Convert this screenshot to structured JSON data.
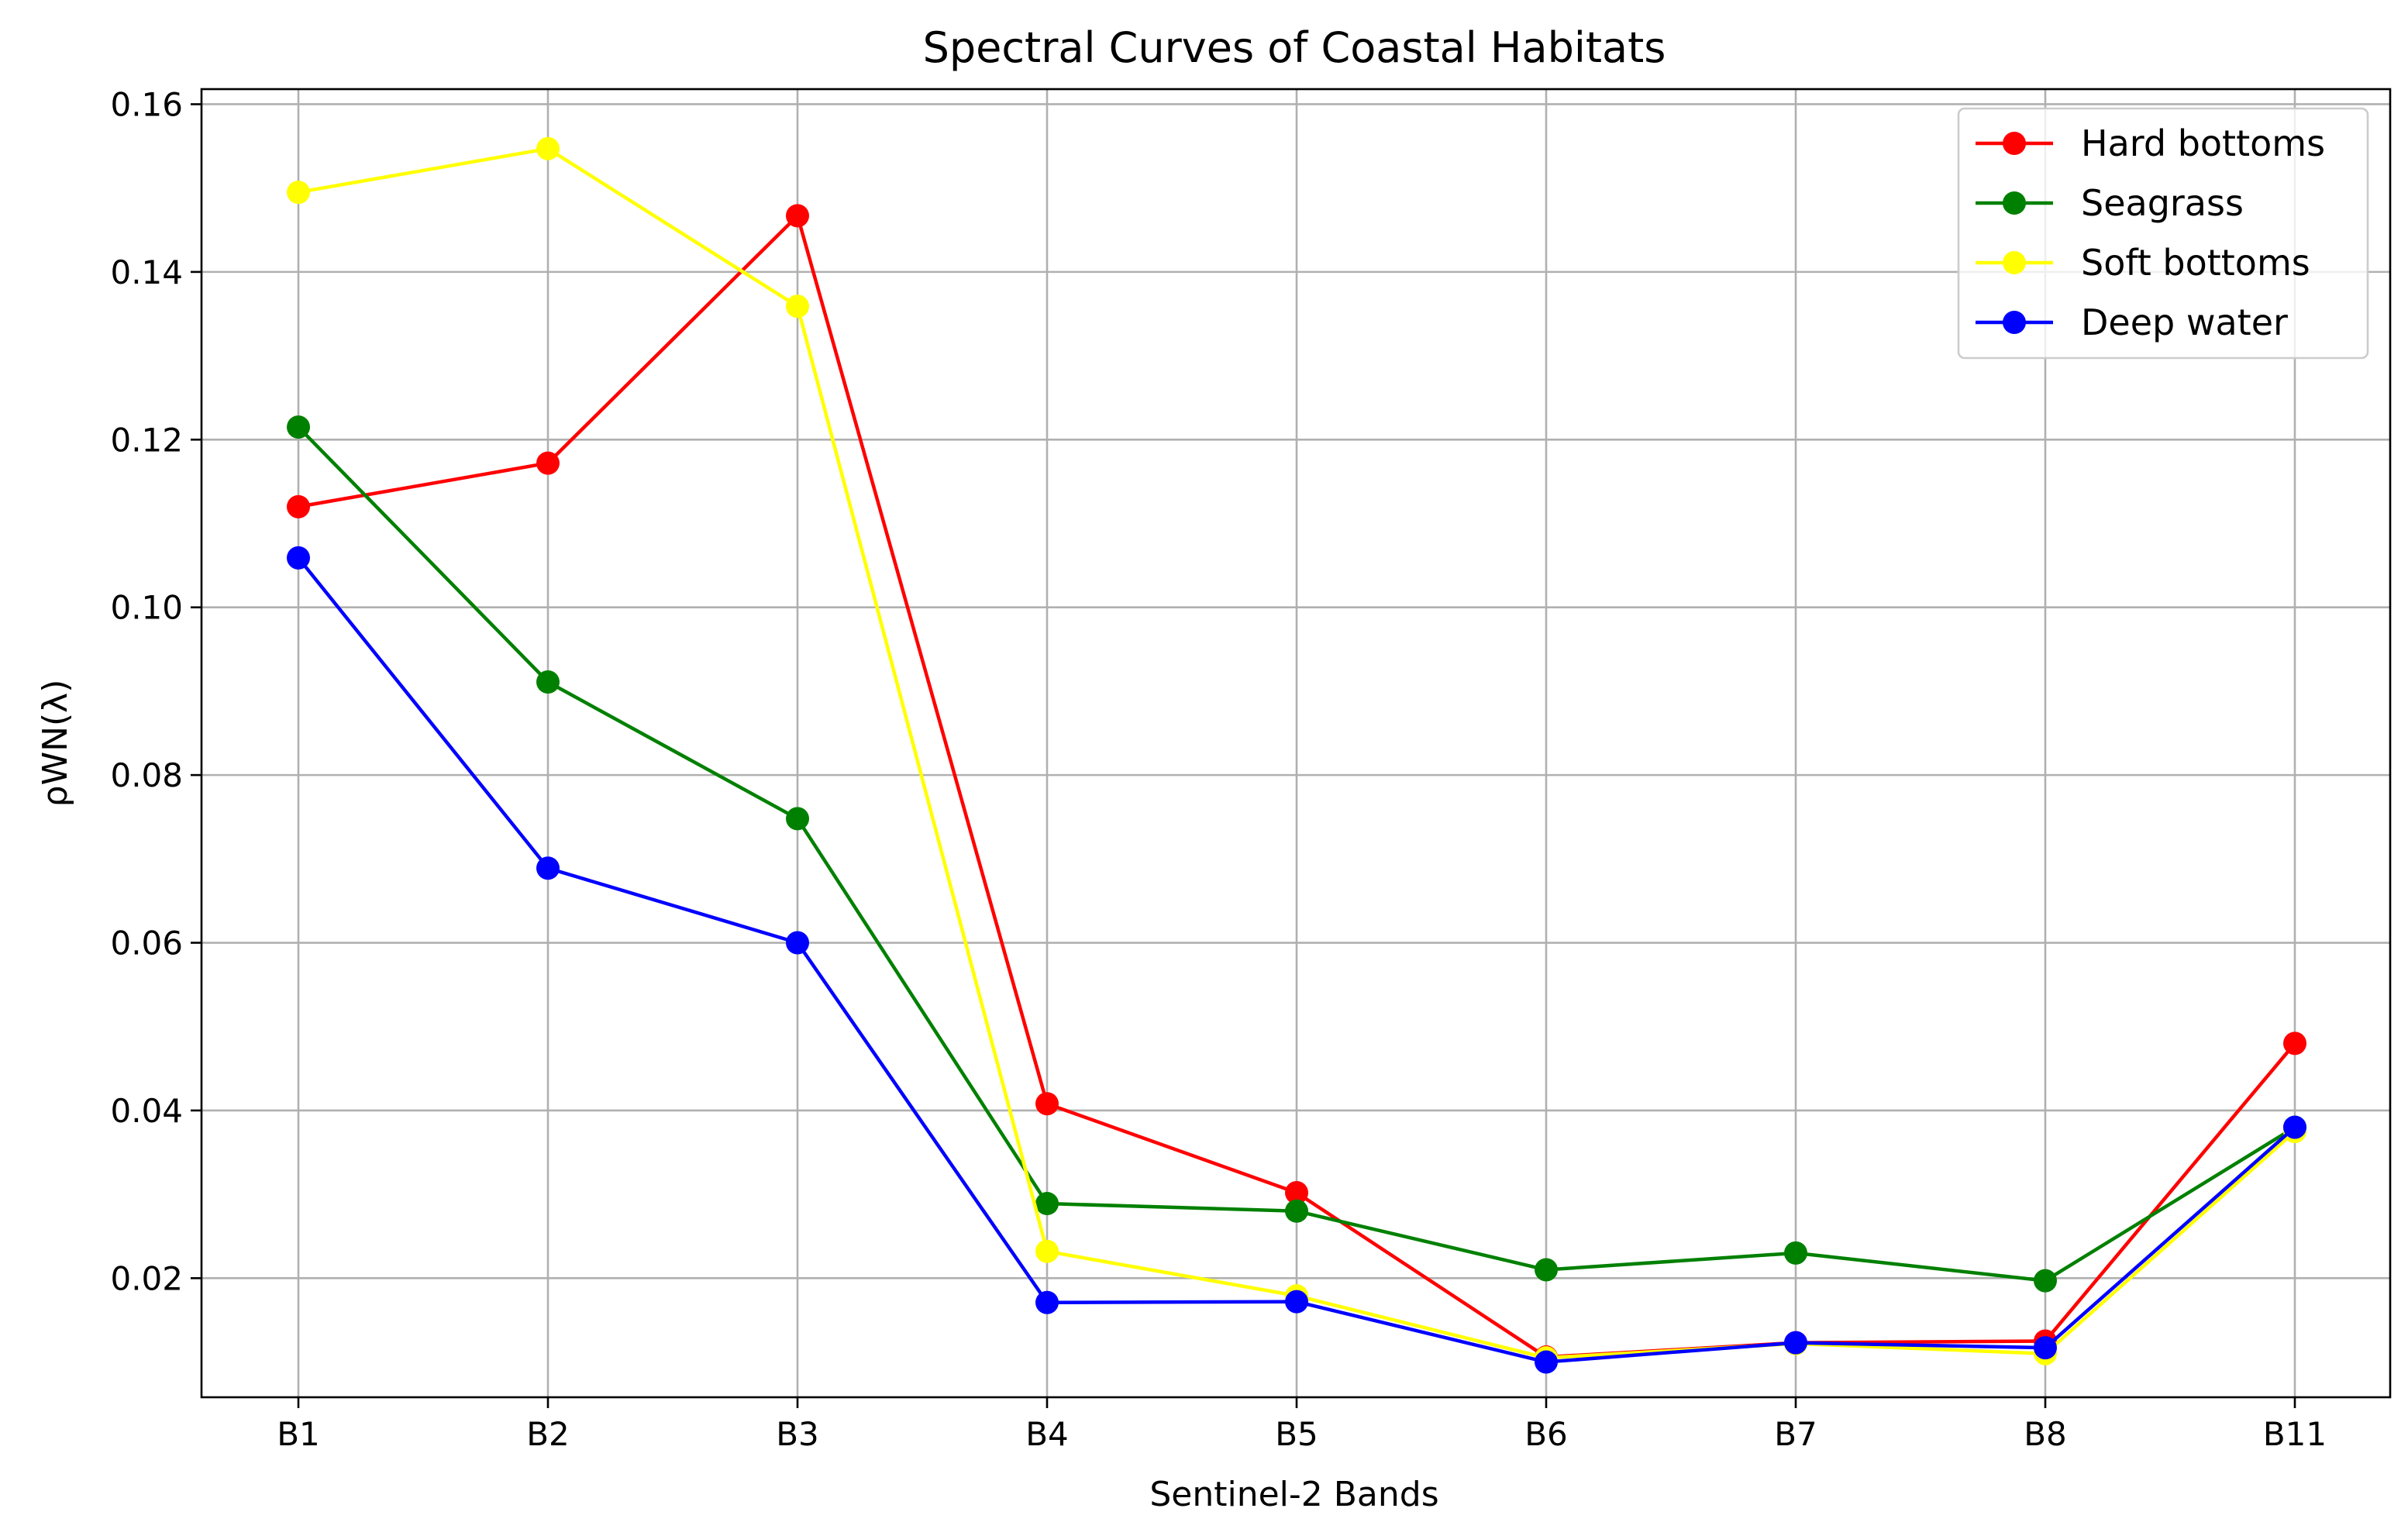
{
  "chart_data": {
    "type": "line",
    "title": "Spectral Curves of Coastal Habitats",
    "xlabel": "Sentinel-2 Bands",
    "ylabel": "ρWN(λ)",
    "categories": [
      "B1",
      "B2",
      "B3",
      "B4",
      "B5",
      "B6",
      "B7",
      "B8",
      "B11"
    ],
    "ylim": [
      0.0058,
      0.1618
    ],
    "yticks": [
      0.02,
      0.04,
      0.06,
      0.08,
      0.1,
      0.12,
      0.14,
      0.16
    ],
    "ytick_labels": [
      "0.02",
      "0.04",
      "0.06",
      "0.08",
      "0.10",
      "0.12",
      "0.14",
      "0.16"
    ],
    "grid": true,
    "legend_position": "top-right",
    "series": [
      {
        "name": "Hard bottoms",
        "color": "#ff0000",
        "values": [
          0.112,
          0.1172,
          0.1467,
          0.0408,
          0.0302,
          0.0106,
          0.0123,
          0.0125,
          0.048
        ]
      },
      {
        "name": "Seagrass",
        "color": "#008000",
        "values": [
          0.1215,
          0.0911,
          0.0748,
          0.0289,
          0.028,
          0.021,
          0.023,
          0.0197,
          0.038
        ]
      },
      {
        "name": "Soft bottoms",
        "color": "#ffff00",
        "values": [
          0.1495,
          0.1547,
          0.1359,
          0.0232,
          0.0179,
          0.0105,
          0.0122,
          0.011,
          0.0375
        ]
      },
      {
        "name": "Deep water",
        "color": "#0000ff",
        "values": [
          0.1059,
          0.0689,
          0.06,
          0.0171,
          0.0172,
          0.01,
          0.0123,
          0.0117,
          0.038
        ]
      }
    ]
  }
}
